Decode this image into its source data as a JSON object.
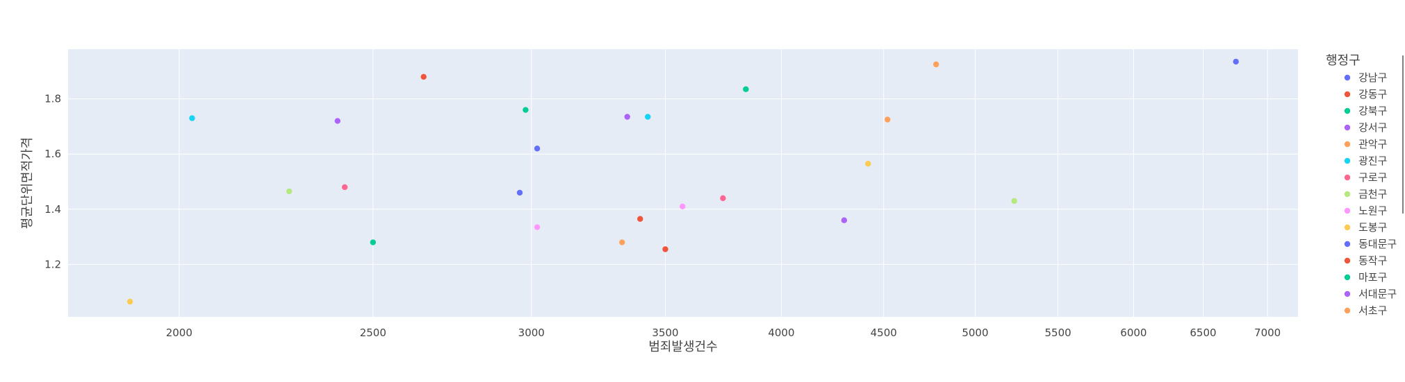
{
  "chart_data": {
    "type": "scatter",
    "title": "",
    "xlabel": "범죄발생건수",
    "ylabel": "평균단위면적가격",
    "x_scale": "log",
    "x_ticks": [
      2000,
      2500,
      3000,
      3500,
      4000,
      4500,
      5000,
      5500,
      6000,
      6500,
      7000
    ],
    "y_ticks": [
      1.2,
      1.4,
      1.6,
      1.8
    ],
    "xlim": [
      1760,
      7250
    ],
    "ylim": [
      1.01,
      1.98
    ],
    "grid": true,
    "legend_title": "행정구",
    "legend_placement": "right",
    "series": [
      {
        "name": "강남구",
        "color": "#636efa",
        "x": [
          6750
        ],
        "y": [
          1.935
        ]
      },
      {
        "name": "강동구",
        "color": "#EF553B",
        "x": [
          2650
        ],
        "y": [
          1.88
        ]
      },
      {
        "name": "강북구",
        "color": "#00cc96",
        "x": [
          2500
        ],
        "y": [
          1.28
        ]
      },
      {
        "name": "강서구",
        "color": "#ab63fa",
        "x": [
          2400
        ],
        "y": [
          1.72
        ]
      },
      {
        "name": "관악구",
        "color": "#FFA15A",
        "x": [
          4780
        ],
        "y": [
          1.925
        ]
      },
      {
        "name": "광진구",
        "color": "#19d3f3",
        "x": [
          2030
        ],
        "y": [
          1.73
        ]
      },
      {
        "name": "구로구",
        "color": "#FF6692",
        "x": [
          2420
        ],
        "y": [
          1.48
        ]
      },
      {
        "name": "금천구",
        "color": "#B6E880",
        "x": [
          2270
        ],
        "y": [
          1.465
        ]
      },
      {
        "name": "노원구",
        "color": "#FF97FF",
        "x": [
          3570
        ],
        "y": [
          1.41
        ]
      },
      {
        "name": "도봉구",
        "color": "#FECB52",
        "x": [
          1890
        ],
        "y": [
          1.065
        ]
      },
      {
        "name": "동대문구",
        "color": "#636efa",
        "x": [
          3020
        ],
        "y": [
          1.62
        ]
      },
      {
        "name": "동작구",
        "color": "#EF553B",
        "x": [
          3400
        ],
        "y": [
          1.365
        ]
      },
      {
        "name": "마포구",
        "color": "#00cc96",
        "x": [
          3840
        ],
        "y": [
          1.835
        ]
      },
      {
        "name": "서대문구",
        "color": "#ab63fa",
        "x": [
          3350
        ],
        "y": [
          1.735
        ]
      },
      {
        "name": "서초구",
        "color": "#FFA15A",
        "x": [
          4520
        ],
        "y": [
          1.725
        ]
      },
      {
        "name": "",
        "color": "#19d3f3",
        "x": [
          3430
        ],
        "y": [
          1.735
        ]
      },
      {
        "name": "",
        "color": "#FF6692",
        "x": [
          3740
        ],
        "y": [
          1.44
        ]
      },
      {
        "name": "",
        "color": "#B6E880",
        "x": [
          5230
        ],
        "y": [
          1.43
        ]
      },
      {
        "name": "",
        "color": "#FF97FF",
        "x": [
          3020
        ],
        "y": [
          1.335
        ]
      },
      {
        "name": "",
        "color": "#FECB52",
        "x": [
          4420
        ],
        "y": [
          1.565
        ]
      },
      {
        "name": "",
        "color": "#636efa",
        "x": [
          2960
        ],
        "y": [
          1.46
        ]
      },
      {
        "name": "",
        "color": "#EF553B",
        "x": [
          3500
        ],
        "y": [
          1.255
        ]
      },
      {
        "name": "",
        "color": "#00cc96",
        "x": [
          2980
        ],
        "y": [
          1.76
        ]
      },
      {
        "name": "",
        "color": "#ab63fa",
        "x": [
          4300
        ],
        "y": [
          1.36
        ]
      },
      {
        "name": "",
        "color": "#FFA15A",
        "x": [
          3330
        ],
        "y": [
          1.28
        ]
      }
    ]
  }
}
